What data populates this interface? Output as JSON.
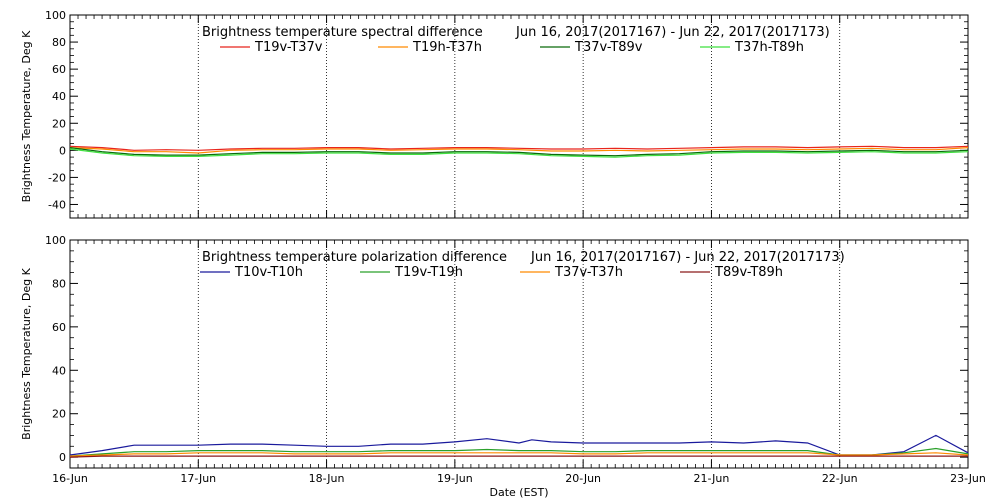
{
  "chart_data": [
    {
      "type": "line",
      "title": "Brightness temperature spectral difference",
      "date_range": "Jun 16, 2017(2017167) - Jun 22, 2017(2017173)",
      "ylabel": "Brightness Temperature, Deg K",
      "xlabel": "",
      "xlim": [
        0,
        7
      ],
      "ylim": [
        -50,
        100
      ],
      "yticks": [
        -40,
        -20,
        0,
        20,
        40,
        60,
        80,
        100
      ],
      "grid": "vertical dotted at day boundaries",
      "legend_position": "top",
      "series": [
        {
          "name": "T19v-T37v",
          "color": "#e8251c",
          "x": [
            0,
            0.25,
            0.5,
            0.75,
            1,
            1.25,
            1.5,
            1.75,
            2,
            2.25,
            2.5,
            2.75,
            3,
            3.25,
            3.5,
            3.75,
            4,
            4.25,
            4.5,
            4.75,
            5,
            5.25,
            5.5,
            5.75,
            6,
            6.25,
            6.5,
            6.75,
            7
          ],
          "y": [
            3,
            2,
            0,
            0.5,
            0,
            1,
            1.5,
            1.5,
            2,
            2,
            1,
            1.5,
            2,
            2,
            1.5,
            1,
            1,
            1.5,
            1,
            1.5,
            2,
            2.5,
            2.5,
            2,
            2.5,
            3,
            2,
            2,
            3
          ]
        },
        {
          "name": "T19h-T37h",
          "color": "#ff8a00",
          "x": [
            0,
            0.25,
            0.5,
            0.75,
            1,
            1.25,
            1.5,
            1.75,
            2,
            2.25,
            2.5,
            2.75,
            3,
            3.25,
            3.5,
            3.75,
            4,
            4.25,
            4.5,
            4.75,
            5,
            5.25,
            5.5,
            5.75,
            6,
            6.25,
            6.5,
            6.75,
            7
          ],
          "y": [
            2,
            1,
            -1,
            -1,
            -2,
            0,
            0.5,
            0.5,
            1,
            1,
            0,
            0.5,
            1,
            1,
            0.5,
            -0.5,
            -0.5,
            0,
            -0.5,
            0,
            0.5,
            1,
            1,
            0.5,
            1,
            1.5,
            0.5,
            0.5,
            2
          ]
        },
        {
          "name": "T37v-T89v",
          "color": "#0a6b0a",
          "x": [
            0,
            0.25,
            0.5,
            0.75,
            1,
            1.25,
            1.5,
            1.75,
            2,
            2.25,
            2.5,
            2.75,
            3,
            3.25,
            3.5,
            3.75,
            4,
            4.25,
            4.5,
            4.75,
            5,
            5.25,
            5.5,
            5.75,
            6,
            6.25,
            6.5,
            6.75,
            7
          ],
          "y": [
            2,
            -1,
            -3,
            -3.5,
            -3.5,
            -2.5,
            -1.5,
            -1.5,
            -1,
            -1,
            -2,
            -2,
            -1,
            -1,
            -1.5,
            -3,
            -3.5,
            -4,
            -3,
            -2.5,
            -1,
            -0.5,
            -0.5,
            -1,
            -0.5,
            0,
            -1,
            -1,
            0
          ]
        },
        {
          "name": "T37h-T89h",
          "color": "#3fe03f",
          "x": [
            0,
            0.25,
            0.5,
            0.75,
            1,
            1.25,
            1.5,
            1.75,
            2,
            2.25,
            2.5,
            2.75,
            3,
            3.25,
            3.5,
            3.75,
            4,
            4.25,
            4.5,
            4.75,
            5,
            5.25,
            5.5,
            5.75,
            6,
            6.25,
            6.5,
            6.75,
            7
          ],
          "y": [
            1,
            -2,
            -4,
            -4.5,
            -4.5,
            -3.5,
            -2.5,
            -2.5,
            -2,
            -2,
            -3,
            -3,
            -2,
            -2,
            -2.5,
            -4,
            -4.5,
            -5,
            -4,
            -3.5,
            -2,
            -1.5,
            -1.5,
            -2,
            -1.5,
            -1,
            -2,
            -2,
            -1
          ]
        }
      ]
    },
    {
      "type": "line",
      "title": "Brightness temperature polarization difference",
      "date_range": "Jun 16, 2017(2017167) - Jun 22, 2017(2017173)",
      "ylabel": "Brightness Temperature, Deg K",
      "xlabel": "Date (EST)",
      "categories": [
        "16-Jun",
        "17-Jun",
        "18-Jun",
        "19-Jun",
        "20-Jun",
        "21-Jun",
        "22-Jun",
        "23-Jun"
      ],
      "xlim": [
        0,
        7
      ],
      "ylim": [
        -5,
        100
      ],
      "yticks": [
        0,
        20,
        40,
        60,
        80,
        100
      ],
      "grid": "vertical dotted at day boundaries",
      "legend_position": "top",
      "series": [
        {
          "name": "T10v-T10h",
          "color": "#1a1a9c",
          "x": [
            0,
            0.25,
            0.5,
            0.75,
            1,
            1.25,
            1.5,
            1.75,
            2,
            2.25,
            2.5,
            2.75,
            3,
            3.25,
            3.5,
            3.6,
            3.75,
            4,
            4.25,
            4.5,
            4.75,
            5,
            5.25,
            5.5,
            5.75,
            6,
            6.25,
            6.5,
            6.75,
            7
          ],
          "y": [
            1,
            3,
            5.5,
            5.5,
            5.5,
            6,
            6,
            5.5,
            5,
            5,
            6,
            6,
            7,
            8.5,
            6.5,
            8,
            7,
            6.5,
            6.5,
            6.5,
            6.5,
            7,
            6.5,
            7.5,
            6.5,
            1,
            1,
            2.5,
            10,
            2
          ]
        },
        {
          "name": "T19v-T19h",
          "color": "#2aa02a",
          "x": [
            0,
            0.25,
            0.5,
            0.75,
            1,
            1.25,
            1.5,
            1.75,
            2,
            2.25,
            2.5,
            2.75,
            3,
            3.25,
            3.5,
            3.75,
            4,
            4.25,
            4.5,
            4.75,
            5,
            5.25,
            5.5,
            5.75,
            6,
            6.25,
            6.5,
            6.75,
            7
          ],
          "y": [
            0.5,
            1.5,
            2.5,
            2.5,
            3,
            3,
            3,
            2.5,
            2.5,
            2.5,
            3,
            3,
            3,
            3.5,
            3,
            3,
            2.5,
            2.5,
            3,
            3,
            3,
            3,
            3,
            3,
            1,
            1,
            2,
            4,
            1.5
          ]
        },
        {
          "name": "T37v-T37h",
          "color": "#ff8a00",
          "x": [
            0,
            0.25,
            0.5,
            0.75,
            1,
            1.25,
            1.5,
            1.75,
            2,
            2.25,
            2.5,
            2.75,
            3,
            3.25,
            3.5,
            3.75,
            4,
            4.25,
            4.5,
            4.75,
            5,
            5.25,
            5.5,
            5.75,
            6,
            6.25,
            6.5,
            6.75,
            7
          ],
          "y": [
            0.5,
            1,
            1.5,
            1.5,
            2,
            2,
            2,
            1.5,
            1.5,
            1.5,
            2,
            2,
            2,
            2,
            2,
            2,
            1.5,
            1.5,
            2,
            2,
            2,
            2,
            2,
            2,
            1,
            1,
            1.5,
            2,
            1
          ]
        },
        {
          "name": "T89v-T89h",
          "color": "#8b1a1a",
          "x": [
            0,
            0.25,
            0.5,
            0.75,
            1,
            1.25,
            1.5,
            1.75,
            2,
            2.25,
            2.5,
            2.75,
            3,
            3.25,
            3.5,
            3.75,
            4,
            4.25,
            4.5,
            4.75,
            5,
            5.25,
            5.5,
            5.75,
            6,
            6.25,
            6.5,
            6.75,
            7
          ],
          "y": [
            0,
            0.5,
            0.5,
            0.5,
            0.5,
            0.5,
            0.5,
            0.5,
            0.5,
            0.5,
            0.5,
            0.5,
            0.5,
            0.5,
            0.5,
            0.5,
            0.5,
            0.5,
            0.5,
            0.5,
            0.5,
            0.5,
            0.5,
            0.5,
            0.5,
            0.5,
            0.5,
            0.5,
            0.5
          ]
        }
      ]
    }
  ]
}
